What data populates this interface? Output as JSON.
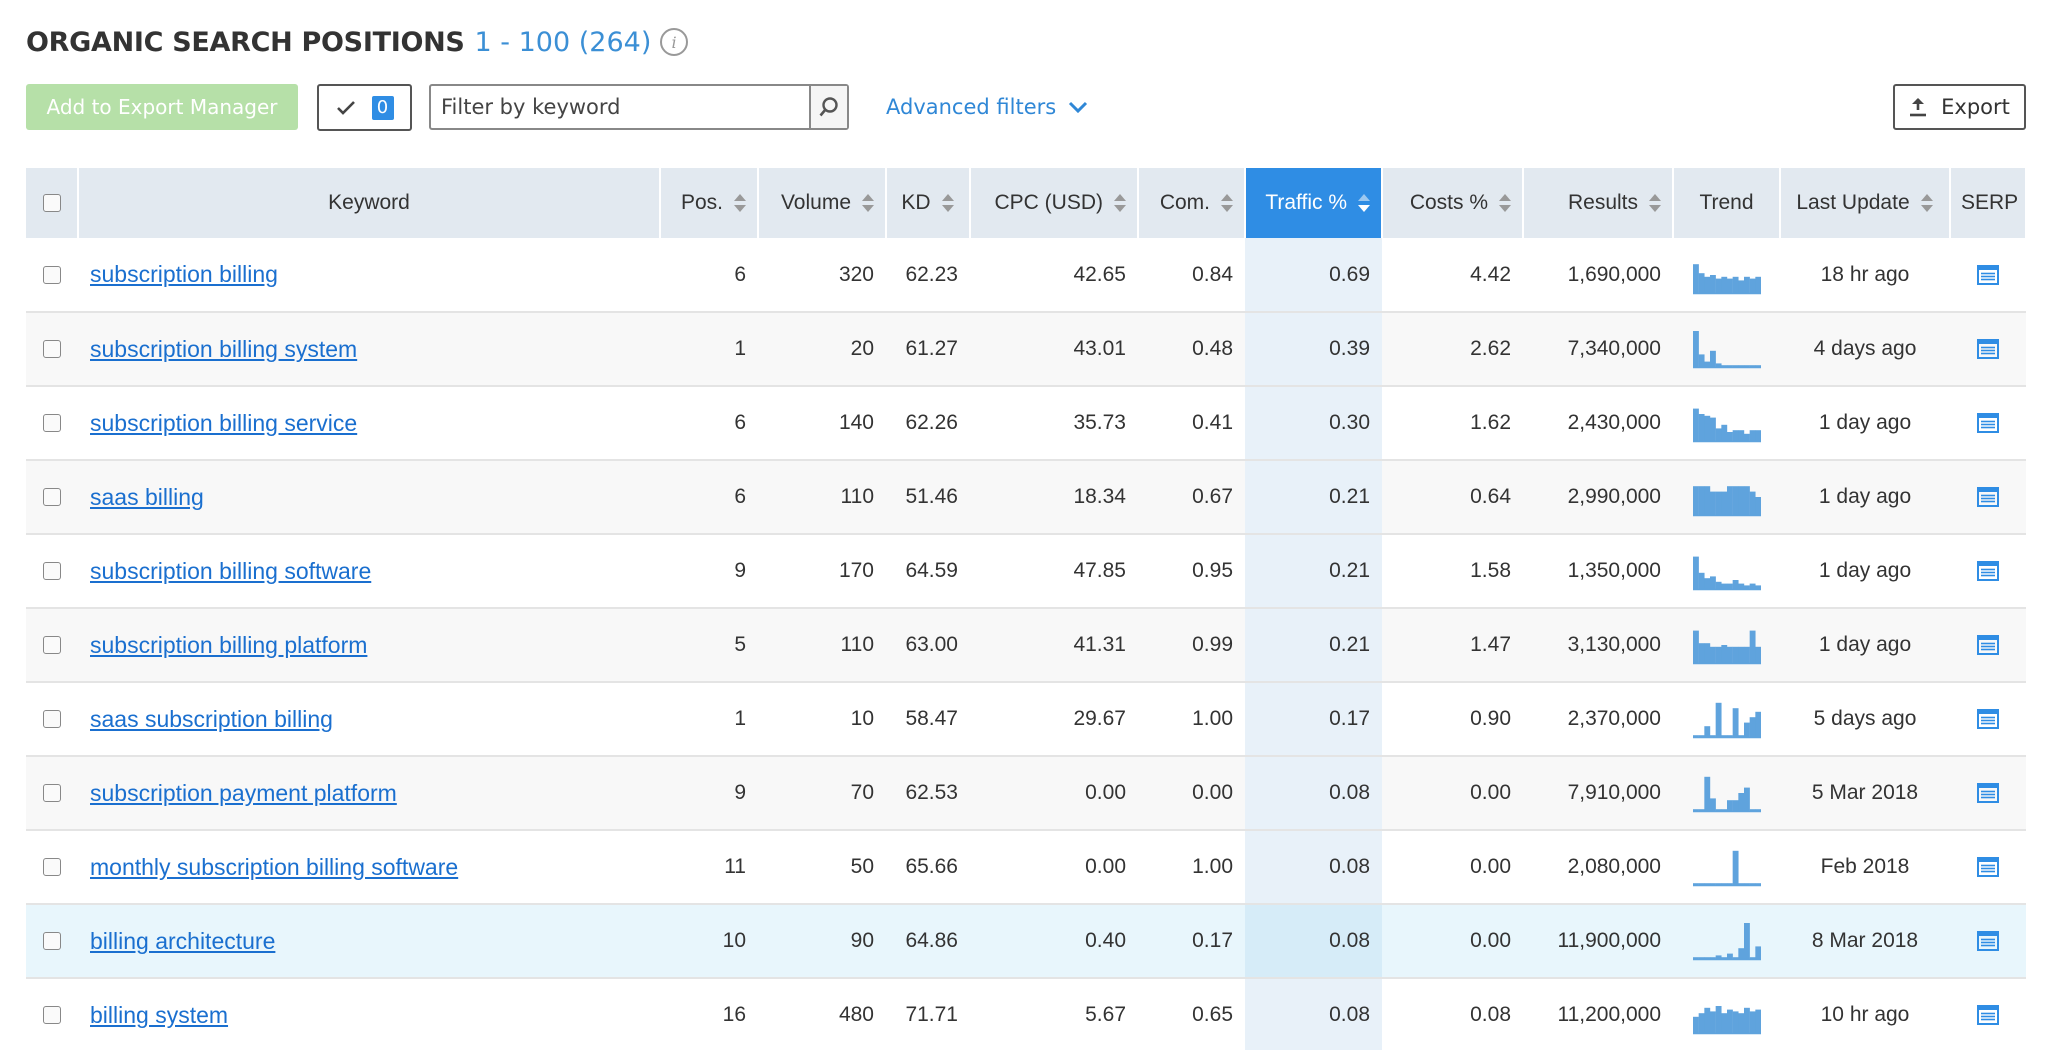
{
  "header": {
    "title": "ORGANIC SEARCH POSITIONS",
    "range": "1 - 100 (264)",
    "info_icon": "info-icon"
  },
  "toolbar": {
    "add_export_label": "Add to Export Manager",
    "selected_count": "0",
    "filter_placeholder": "Filter by keyword",
    "advanced_filters_label": "Advanced filters",
    "export_label": "Export"
  },
  "table": {
    "columns": {
      "keyword": "Keyword",
      "pos": "Pos.",
      "volume": "Volume",
      "kd": "KD",
      "cpc": "CPC (USD)",
      "com": "Com.",
      "traffic": "Traffic %",
      "costs": "Costs %",
      "results": "Results",
      "trend": "Trend",
      "last_update": "Last Update",
      "serp": "SERP"
    },
    "sorted_column": "traffic",
    "rows": [
      {
        "keyword": "subscription billing",
        "pos": "6",
        "volume": "320",
        "kd": "62.23",
        "cpc": "42.65",
        "com": "0.84",
        "traffic": "0.69",
        "costs": "4.42",
        "results": "1,690,000",
        "last_update": "18 hr ago",
        "trend": [
          0.8,
          0.55,
          0.45,
          0.5,
          0.4,
          0.45,
          0.4,
          0.45,
          0.35,
          0.45,
          0.4,
          0.45
        ]
      },
      {
        "keyword": "subscription billing system",
        "pos": "1",
        "volume": "20",
        "kd": "61.27",
        "cpc": "43.01",
        "com": "0.48",
        "traffic": "0.39",
        "costs": "2.62",
        "results": "7,340,000",
        "last_update": "4 days ago",
        "trend": [
          1.0,
          0.35,
          0.15,
          0.45,
          0.1,
          0.05,
          0.05,
          0.05,
          0.05,
          0.05,
          0.05,
          0.05
        ]
      },
      {
        "keyword": "subscription billing service",
        "pos": "6",
        "volume": "140",
        "kd": "62.26",
        "cpc": "35.73",
        "com": "0.41",
        "traffic": "0.30",
        "costs": "1.62",
        "results": "2,430,000",
        "last_update": "1 day ago",
        "trend": [
          0.9,
          0.75,
          0.7,
          0.65,
          0.35,
          0.45,
          0.25,
          0.3,
          0.3,
          0.2,
          0.3,
          0.3
        ]
      },
      {
        "keyword": "saas billing",
        "pos": "6",
        "volume": "110",
        "kd": "51.46",
        "cpc": "18.34",
        "com": "0.67",
        "traffic": "0.21",
        "costs": "0.64",
        "results": "2,990,000",
        "last_update": "1 day ago",
        "trend": [
          0.8,
          0.8,
          0.8,
          0.65,
          0.65,
          0.65,
          0.8,
          0.8,
          0.8,
          0.8,
          0.65,
          0.5
        ]
      },
      {
        "keyword": "subscription billing software",
        "pos": "9",
        "volume": "170",
        "kd": "64.59",
        "cpc": "47.85",
        "com": "0.95",
        "traffic": "0.21",
        "costs": "1.58",
        "results": "1,350,000",
        "last_update": "1 day ago",
        "trend": [
          0.9,
          0.45,
          0.3,
          0.35,
          0.2,
          0.15,
          0.15,
          0.25,
          0.15,
          0.1,
          0.15,
          0.1
        ]
      },
      {
        "keyword": "subscription billing platform",
        "pos": "5",
        "volume": "110",
        "kd": "63.00",
        "cpc": "41.31",
        "com": "0.99",
        "traffic": "0.21",
        "costs": "1.47",
        "results": "3,130,000",
        "last_update": "1 day ago",
        "trend": [
          0.9,
          0.55,
          0.55,
          0.45,
          0.45,
          0.5,
          0.45,
          0.45,
          0.45,
          0.45,
          0.9,
          0.45
        ]
      },
      {
        "keyword": "saas subscription billing",
        "pos": "1",
        "volume": "10",
        "kd": "58.47",
        "cpc": "29.67",
        "com": "1.00",
        "traffic": "0.17",
        "costs": "0.90",
        "results": "2,370,000",
        "last_update": "5 days ago",
        "trend": [
          0.05,
          0.05,
          0.3,
          0.05,
          0.95,
          0.05,
          0.05,
          0.8,
          0.05,
          0.4,
          0.55,
          0.7
        ]
      },
      {
        "keyword": "subscription payment platform",
        "pos": "9",
        "volume": "70",
        "kd": "62.53",
        "cpc": "0.00",
        "com": "0.00",
        "traffic": "0.08",
        "costs": "0.00",
        "results": "7,910,000",
        "last_update": "5 Mar 2018",
        "trend": [
          0.05,
          0.05,
          0.95,
          0.35,
          0.05,
          0.05,
          0.3,
          0.3,
          0.5,
          0.65,
          0.05,
          0.05
        ]
      },
      {
        "keyword": "monthly subscription billing software",
        "pos": "11",
        "volume": "50",
        "kd": "65.66",
        "cpc": "0.00",
        "com": "1.00",
        "traffic": "0.08",
        "costs": "0.00",
        "results": "2,080,000",
        "last_update": "Feb 2018",
        "trend": [
          0.05,
          0.05,
          0.05,
          0.05,
          0.05,
          0.05,
          0.05,
          0.95,
          0.05,
          0.05,
          0.05,
          0.05
        ]
      },
      {
        "keyword": "billing architecture",
        "pos": "10",
        "volume": "90",
        "kd": "64.86",
        "cpc": "0.40",
        "com": "0.17",
        "traffic": "0.08",
        "costs": "0.00",
        "results": "11,900,000",
        "last_update": "8 Mar 2018",
        "trend": [
          0.05,
          0.05,
          0.05,
          0.05,
          0.1,
          0.05,
          0.15,
          0.05,
          0.3,
          1.0,
          0.05,
          0.35
        ]
      },
      {
        "keyword": "billing system",
        "pos": "16",
        "volume": "480",
        "kd": "71.71",
        "cpc": "5.67",
        "com": "0.65",
        "traffic": "0.08",
        "costs": "0.08",
        "results": "11,200,000",
        "last_update": "10 hr ago",
        "trend": [
          0.45,
          0.55,
          0.7,
          0.6,
          0.75,
          0.55,
          0.65,
          0.6,
          0.55,
          0.7,
          0.6,
          0.65
        ]
      }
    ]
  },
  "colors": {
    "accent": "#2f8de4",
    "link": "#1a6fcf",
    "trend_bar": "#5fa3dd",
    "export_manager_btn": "#b6e0a8"
  }
}
